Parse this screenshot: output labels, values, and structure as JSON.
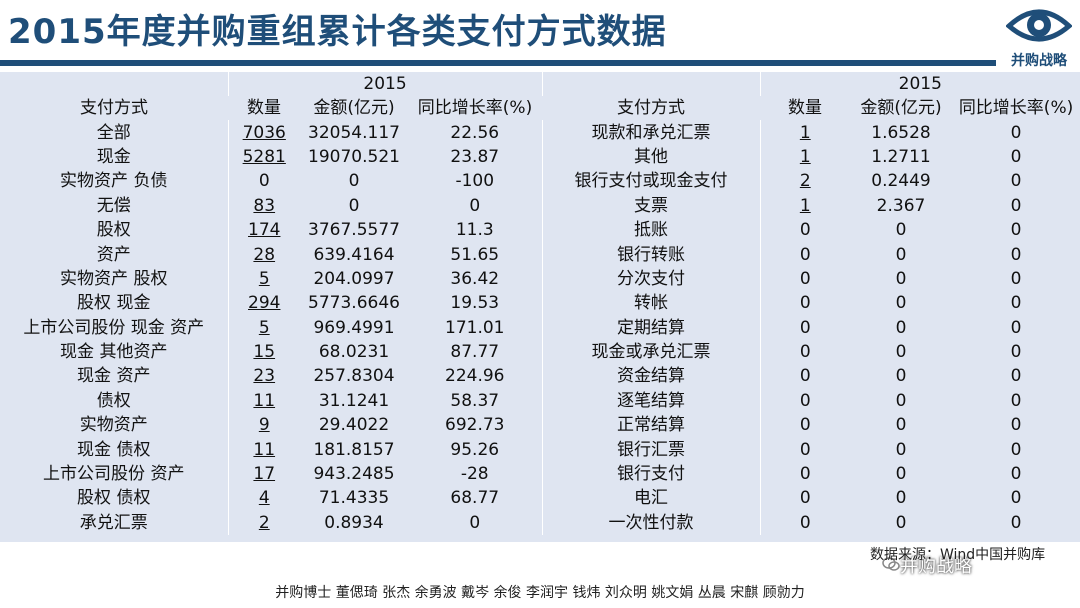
{
  "title": "2015年度并购重组累计各类支付方式数据",
  "logo_text": "并购战略",
  "year": "2015",
  "headers": [
    "支付方式",
    "数量",
    "金额(亿元)",
    "同比增长率(%)"
  ],
  "left_rows": [
    [
      "全部",
      "7036",
      "32054.117",
      "22.56"
    ],
    [
      "现金",
      "5281",
      "19070.521",
      "23.87"
    ],
    [
      "实物资产 负债",
      "0",
      "0",
      "-100"
    ],
    [
      "无偿",
      "83",
      "0",
      "0"
    ],
    [
      "股权",
      "174",
      "3767.5577",
      "11.3"
    ],
    [
      "资产",
      "28",
      "639.4164",
      "51.65"
    ],
    [
      "实物资产 股权",
      "5",
      "204.0997",
      "36.42"
    ],
    [
      "股权 现金",
      "294",
      "5773.6646",
      "19.53"
    ],
    [
      "上市公司股份 现金 资产",
      "5",
      "969.4991",
      "171.01"
    ],
    [
      "现金 其他资产",
      "15",
      "68.0231",
      "87.77"
    ],
    [
      "现金 资产",
      "23",
      "257.8304",
      "224.96"
    ],
    [
      "债权",
      "11",
      "31.1241",
      "58.37"
    ],
    [
      "实物资产",
      "9",
      "29.4022",
      "692.73"
    ],
    [
      "现金 债权",
      "11",
      "181.8157",
      "95.26"
    ],
    [
      "上市公司股份 资产",
      "17",
      "943.2485",
      "-28"
    ],
    [
      "股权 债权",
      "4",
      "71.4335",
      "68.77"
    ],
    [
      "承兑汇票",
      "2",
      "0.8934",
      "0"
    ]
  ],
  "left_underlined": [
    true,
    true,
    false,
    true,
    true,
    true,
    true,
    true,
    true,
    true,
    true,
    true,
    true,
    true,
    true,
    true,
    true
  ],
  "right_rows": [
    [
      "现款和承兑汇票",
      "1",
      "1.6528",
      "0"
    ],
    [
      "其他",
      "1",
      "1.2711",
      "0"
    ],
    [
      "银行支付或现金支付",
      "2",
      "0.2449",
      "0"
    ],
    [
      "支票",
      "1",
      "2.367",
      "0"
    ],
    [
      "抵账",
      "0",
      "0",
      "0"
    ],
    [
      "银行转账",
      "0",
      "0",
      "0"
    ],
    [
      "分次支付",
      "0",
      "0",
      "0"
    ],
    [
      "转帐",
      "0",
      "0",
      "0"
    ],
    [
      "定期结算",
      "0",
      "0",
      "0"
    ],
    [
      "现金或承兑汇票",
      "0",
      "0",
      "0"
    ],
    [
      "资金结算",
      "0",
      "0",
      "0"
    ],
    [
      "逐笔结算",
      "0",
      "0",
      "0"
    ],
    [
      "正常结算",
      "0",
      "0",
      "0"
    ],
    [
      "银行汇票",
      "0",
      "0",
      "0"
    ],
    [
      "银行支付",
      "0",
      "0",
      "0"
    ],
    [
      "电汇",
      "0",
      "0",
      "0"
    ],
    [
      "一次性付款",
      "0",
      "0",
      "0"
    ]
  ],
  "right_underlined": [
    true,
    true,
    true,
    true,
    false,
    false,
    false,
    false,
    false,
    false,
    false,
    false,
    false,
    false,
    false,
    false,
    false
  ],
  "footnote": "数据来源：Wind中国并购库",
  "watermark": "并购战略",
  "authors": "并购博士 董偲琦 张杰 余勇波 戴岑 余俊 李润宇 钱炜 刘众明 姚文娟 丛晨 宋麒 顾勍力",
  "colors": {
    "title": "#1f4e79",
    "table_bg": "#dfe5f1"
  }
}
